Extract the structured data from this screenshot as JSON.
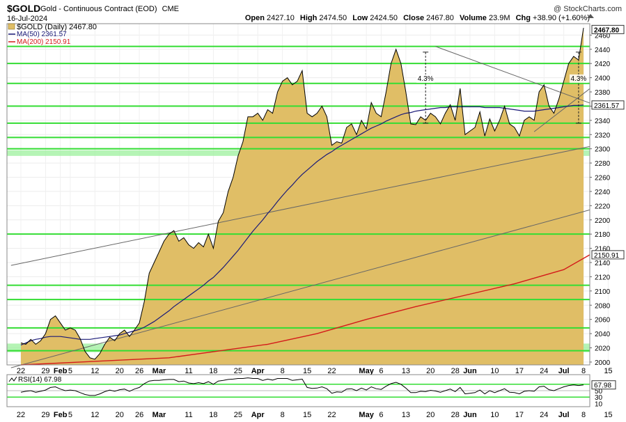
{
  "header": {
    "symbol": "$GOLD",
    "description": "Gold - Continuous Contract (EOD)",
    "exchange": "CME",
    "date": "16-Jul-2024",
    "watermark": "@ StockCharts.com",
    "open_label": "Open",
    "open": "2427.10",
    "high_label": "High",
    "high": "2474.50",
    "low_label": "Low",
    "low": "2424.50",
    "close_label": "Close",
    "close": "2467.80",
    "volume_label": "Volume",
    "volume": "23.9M",
    "chg_label": "Chg",
    "chg": "+38.90 (+1.60%)"
  },
  "colors": {
    "area_fill": "#E0BE66",
    "price_line": "#000000",
    "ma50": "#1A1A78",
    "ma200": "#D41A1A",
    "hline": "#33DD33",
    "zone": "#9CF09C",
    "trend": "#666666"
  },
  "chart_data": [
    {
      "type": "area",
      "legend": [
        {
          "key": "price",
          "label": "$GOLD (Daily) 2467.80"
        },
        {
          "key": "ma50",
          "label": "MA(50) 2361.57"
        },
        {
          "key": "ma200",
          "label": "MA(200) 2150.91"
        }
      ],
      "x_ticks": [
        {
          "label": "22",
          "i": 0
        },
        {
          "label": "29",
          "i": 5
        },
        {
          "label": "Feb",
          "i": 8,
          "bold": true
        },
        {
          "label": "5",
          "i": 10
        },
        {
          "label": "12",
          "i": 15
        },
        {
          "label": "20",
          "i": 20
        },
        {
          "label": "26",
          "i": 24
        },
        {
          "label": "Mar",
          "i": 28,
          "bold": true
        },
        {
          "label": "11",
          "i": 34
        },
        {
          "label": "18",
          "i": 39
        },
        {
          "label": "25",
          "i": 44
        },
        {
          "label": "Apr",
          "i": 48,
          "bold": true
        },
        {
          "label": "8",
          "i": 53
        },
        {
          "label": "15",
          "i": 58
        },
        {
          "label": "22",
          "i": 63
        },
        {
          "label": "May",
          "i": 70,
          "bold": true
        },
        {
          "label": "6",
          "i": 73
        },
        {
          "label": "13",
          "i": 78
        },
        {
          "label": "20",
          "i": 83
        },
        {
          "label": "28",
          "i": 88
        },
        {
          "label": "Jun",
          "i": 91,
          "bold": true
        },
        {
          "label": "10",
          "i": 96
        },
        {
          "label": "17",
          "i": 101
        },
        {
          "label": "24",
          "i": 106
        },
        {
          "label": "Jul",
          "i": 110,
          "bold": true
        },
        {
          "label": "8",
          "i": 114
        },
        {
          "label": "15",
          "i": 119
        }
      ],
      "y_ticks": [
        2000,
        2020,
        2040,
        2060,
        2080,
        2100,
        2120,
        2140,
        2160,
        2180,
        2200,
        2220,
        2240,
        2260,
        2280,
        2300,
        2320,
        2340,
        2360,
        2380,
        2400,
        2420,
        2440,
        2460
      ],
      "ylim": [
        1996,
        2476
      ],
      "price_badges": [
        {
          "value": 2467.8,
          "label": "2467.80",
          "bold": true
        },
        {
          "value": 2361.57,
          "label": "2361.57"
        },
        {
          "value": 2150.91,
          "label": "2150.91"
        }
      ],
      "price": [
        2027,
        2025,
        2032,
        2025,
        2030,
        2040,
        2060,
        2065,
        2055,
        2045,
        2048,
        2045,
        2033,
        2015,
        2006,
        2004,
        2012,
        2025,
        2035,
        2030,
        2040,
        2045,
        2036,
        2045,
        2055,
        2085,
        2125,
        2140,
        2155,
        2170,
        2180,
        2185,
        2170,
        2175,
        2165,
        2160,
        2168,
        2162,
        2180,
        2160,
        2198,
        2210,
        2240,
        2260,
        2290,
        2310,
        2345,
        2345,
        2350,
        2340,
        2355,
        2350,
        2380,
        2395,
        2400,
        2390,
        2395,
        2410,
        2350,
        2345,
        2350,
        2360,
        2345,
        2305,
        2310,
        2308,
        2330,
        2335,
        2320,
        2340,
        2328,
        2365,
        2350,
        2345,
        2380,
        2420,
        2440,
        2420,
        2380,
        2335,
        2334,
        2345,
        2340,
        2350,
        2345,
        2335,
        2350,
        2362,
        2340,
        2385,
        2320,
        2325,
        2330,
        2352,
        2318,
        2342,
        2325,
        2340,
        2360,
        2335,
        2330,
        2318,
        2340,
        2345,
        2340,
        2380,
        2390,
        2360,
        2350,
        2370,
        2395,
        2420,
        2430,
        2425,
        2470
      ],
      "ma50": [
        2024,
        2027,
        2030,
        2032,
        2033,
        2035,
        2036,
        2036,
        2036,
        2035,
        2034,
        2033,
        2032,
        2032,
        2032,
        2033,
        2034,
        2035,
        2036,
        2037,
        2038,
        2040,
        2042,
        2044,
        2046,
        2049,
        2053,
        2057,
        2062,
        2067,
        2072,
        2078,
        2083,
        2088,
        2093,
        2098,
        2103,
        2108,
        2114,
        2119,
        2126,
        2133,
        2141,
        2149,
        2157,
        2166,
        2175,
        2184,
        2192,
        2200,
        2209,
        2217,
        2226,
        2234,
        2242,
        2249,
        2257,
        2264,
        2270,
        2276,
        2282,
        2287,
        2292,
        2296,
        2301,
        2305,
        2309,
        2313,
        2317,
        2321,
        2325,
        2329,
        2332,
        2335,
        2339,
        2342,
        2345,
        2348,
        2350,
        2351,
        2353,
        2354,
        2355,
        2356,
        2357,
        2358,
        2358,
        2359,
        2359,
        2359,
        2359,
        2359,
        2359,
        2359,
        2358,
        2358,
        2358,
        2358,
        2357,
        2356,
        2355,
        2354,
        2353,
        2353,
        2353,
        2354,
        2355,
        2356,
        2357,
        2358,
        2359,
        2360,
        2361,
        2361,
        2361.57
      ],
      "ma200_points": [
        [
          0,
          1996
        ],
        [
          30,
          2006
        ],
        [
          50,
          2025
        ],
        [
          60,
          2040
        ],
        [
          70,
          2060
        ],
        [
          80,
          2078
        ],
        [
          90,
          2094
        ],
        [
          100,
          2110
        ],
        [
          110,
          2130
        ],
        [
          120,
          2150.91
        ]
      ],
      "support_lines": [
        2316,
        2336,
        2392,
        2420,
        2444,
        2360,
        2300,
        2180,
        2108,
        2088,
        2048,
        2016
      ],
      "support_zones": [
        [
          2290,
          2298
        ],
        [
          2014,
          2026
        ]
      ],
      "trend_lines": [
        {
          "from": [
            -2,
            2136
          ],
          "to": [
            120,
            2310
          ]
        },
        {
          "from": [
            -2,
            1992
          ],
          "to": [
            120,
            2223
          ]
        },
        {
          "from": [
            84,
            2444
          ],
          "to": [
            117,
            2360
          ]
        },
        {
          "from": [
            104,
            2324
          ],
          "to": [
            120,
            2410
          ]
        }
      ],
      "annotations": [
        {
          "label": "4.3%",
          "i": 82,
          "from": 2436,
          "to": 2336
        },
        {
          "label": "4.3%",
          "i": 113,
          "from": 2436,
          "to": 2336
        }
      ]
    },
    {
      "type": "line",
      "indicator": "RSI",
      "legend": "RSI(14) 67.98",
      "ylim": [
        0,
        100
      ],
      "y_ticks": [
        10,
        30,
        50
      ],
      "levels": [
        30,
        70
      ],
      "badge": "67.98",
      "badge_value": 67.98,
      "values": [
        45,
        48,
        50,
        45,
        48,
        52,
        60,
        62,
        55,
        50,
        52,
        50,
        44,
        38,
        35,
        35,
        40,
        47,
        52,
        48,
        53,
        55,
        48,
        55,
        60,
        72,
        80,
        82,
        82,
        84,
        85,
        85,
        78,
        80,
        74,
        72,
        75,
        72,
        78,
        70,
        80,
        82,
        85,
        86,
        88,
        88,
        90,
        88,
        88,
        82,
        86,
        83,
        88,
        88,
        88,
        82,
        84,
        86,
        60,
        57,
        58,
        62,
        56,
        42,
        46,
        45,
        55,
        56,
        50,
        58,
        52,
        62,
        56,
        54,
        64,
        72,
        76,
        70,
        58,
        44,
        44,
        48,
        47,
        51,
        49,
        45,
        50,
        55,
        47,
        60,
        40,
        42,
        44,
        52,
        40,
        50,
        44,
        50,
        56,
        45,
        44,
        40,
        48,
        50,
        48,
        62,
        64,
        53,
        50,
        56,
        62,
        66,
        68,
        66,
        67.98
      ]
    }
  ]
}
